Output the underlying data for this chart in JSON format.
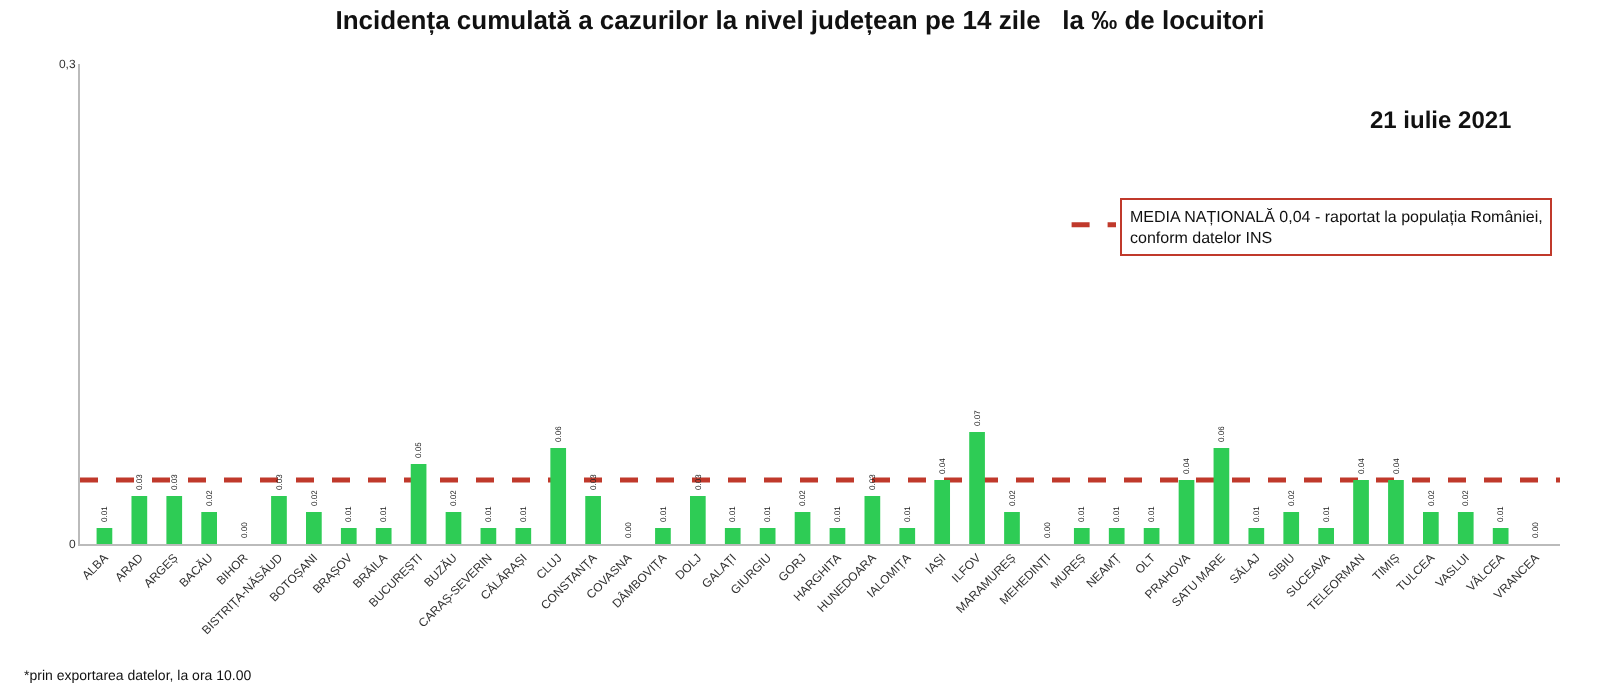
{
  "chart_data": {
    "type": "bar",
    "title": "Incidența cumulată a cazurilor la nivel județean pe 14 zile   la ‰ de locuitori",
    "categories": [
      "ALBA",
      "ARAD",
      "ARGEȘ",
      "BACĂU",
      "BIHOR",
      "BISTRIȚA-NĂSĂUD",
      "BOTOȘANI",
      "BRAȘOV",
      "BRĂILA",
      "BUCUREȘTI",
      "BUZĂU",
      "CARAȘ-SEVERIN",
      "CĂLĂRAȘI",
      "CLUJ",
      "CONSTANȚA",
      "COVASNA",
      "DÂMBOVIȚA",
      "DOLJ",
      "GALAȚI",
      "GIURGIU",
      "GORJ",
      "HARGHITA",
      "HUNEDOARA",
      "IALOMIȚA",
      "IAȘI",
      "ILFOV",
      "MARAMUREȘ",
      "MEHEDINȚI",
      "MUREȘ",
      "NEAMȚ",
      "OLT",
      "PRAHOVA",
      "SATU MARE",
      "SĂLAJ",
      "SIBIU",
      "SUCEAVA",
      "TELEORMAN",
      "TIMIȘ",
      "TULCEA",
      "VASLUI",
      "VÂLCEA",
      "VRANCEA"
    ],
    "values": [
      0.01,
      0.03,
      0.03,
      0.02,
      0.0,
      0.03,
      0.02,
      0.01,
      0.01,
      0.05,
      0.02,
      0.01,
      0.01,
      0.06,
      0.03,
      0.0,
      0.01,
      0.03,
      0.01,
      0.01,
      0.02,
      0.01,
      0.03,
      0.01,
      0.04,
      0.07,
      0.02,
      0.0,
      0.01,
      0.01,
      0.01,
      0.04,
      0.06,
      0.01,
      0.02,
      0.01,
      0.04,
      0.04,
      0.02,
      0.02,
      0.01,
      0.0
    ],
    "value_labels": [
      "0.01",
      "0.03",
      "0.03",
      "0.02",
      "0.00",
      "0.03",
      "0.02",
      "0.01",
      "0.01",
      "0.05",
      "0.02",
      "0.01",
      "0.01",
      "0.06",
      "0.03",
      "0.00",
      "0.01",
      "0.03",
      "0.01",
      "0.01",
      "0.02",
      "0.01",
      "0.03",
      "0.01",
      "0.04",
      "0.07",
      "0.02",
      "0.00",
      "0.01",
      "0.01",
      "0.01",
      "0.04",
      "0.06",
      "0.01",
      "0.02",
      "0.01",
      "0.04",
      "0.04",
      "0.02",
      "0.02",
      "0.01",
      "0.00"
    ],
    "color": "#2ecc55",
    "ylim": [
      0,
      0.3
    ],
    "yticks": [
      0,
      {
        "value": 0.3,
        "label": "0,3"
      }
    ],
    "grid": false,
    "ref_lines": [
      {
        "axis": "y",
        "value": 0.04,
        "label": "MEDIA NAȚIONALĂ 0,04 - raportat la populația României, conform datelor INS",
        "color": "#c0392b",
        "line_style": "dashed"
      }
    ],
    "annotations": [
      "21 iulie 2021",
      "*prin exportarea datelor, la ora 10.00"
    ]
  }
}
